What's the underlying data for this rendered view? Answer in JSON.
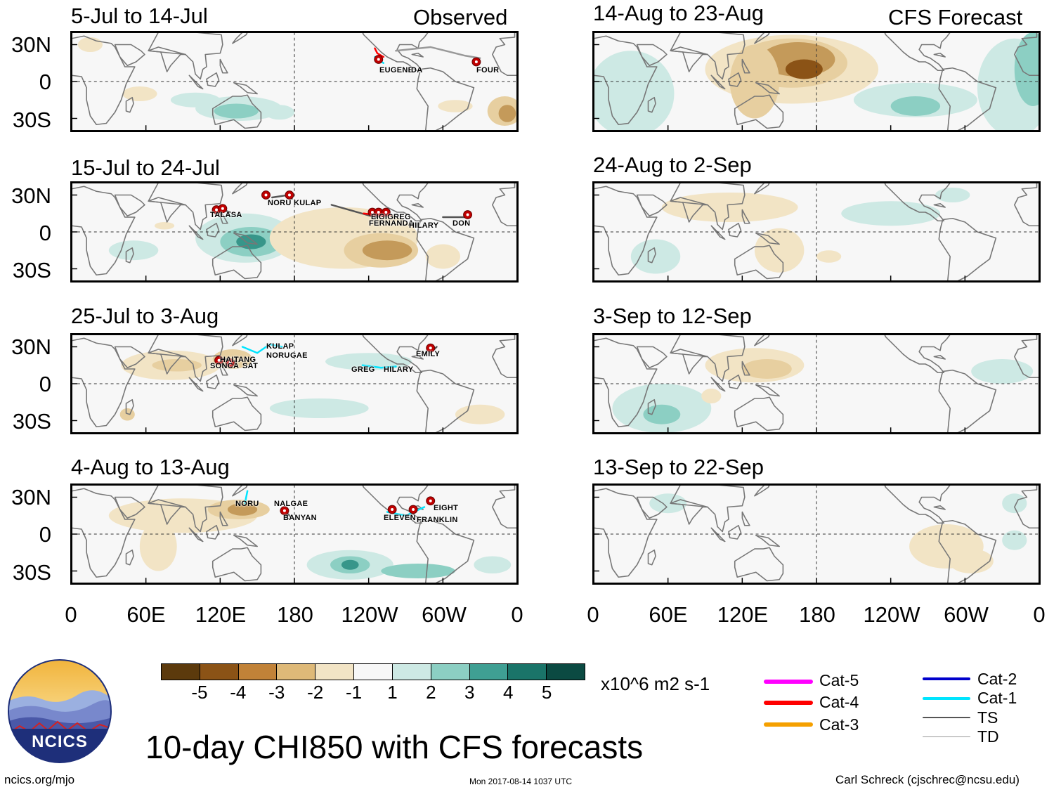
{
  "colors": {
    "panel_bg": "#f7f7f7",
    "brown_dark": "#8b5316",
    "brown_mid": "#c49a5a",
    "brown_light": "#e7cfa0",
    "tan": "#f2e4c5",
    "green_light": "#cde9e4",
    "green_mid": "#8ccfc3",
    "green_dark": "#37968a",
    "coast": "#777777",
    "storm_red": "#c00000"
  },
  "observed_label": "Observed",
  "forecast_label": "CFS Forecast",
  "left_panels": [
    {
      "title": "5-Jul to 14-Jul"
    },
    {
      "title": "15-Jul to 24-Jul"
    },
    {
      "title": "25-Jul to 3-Aug"
    },
    {
      "title": "4-Aug to 13-Aug"
    }
  ],
  "right_panels": [
    {
      "title": "14-Aug to 23-Aug"
    },
    {
      "title": "24-Aug to 2-Sep"
    },
    {
      "title": "3-Sep to 12-Sep"
    },
    {
      "title": "13-Sep to 22-Sep"
    }
  ],
  "lat_labels": [
    "30N",
    "0",
    "30S"
  ],
  "lon_labels": [
    "0",
    "60E",
    "120E",
    "180",
    "120W",
    "60W",
    "0"
  ],
  "storms": [
    [
      "EUGENE",
      "DA",
      "FOUR"
    ],
    [
      "TALASA",
      "NORU",
      "KULAP",
      "FERNANDA",
      "EIGIGREG",
      "HILARY",
      "DON"
    ],
    [
      "SONCA",
      "SAT",
      "HAITANG",
      "KULAP",
      "NORU",
      "GAE",
      "GREG",
      "HILARY",
      "EMILY"
    ],
    [
      "NORU",
      "NALGAE",
      "BANYAN",
      "ELEVEN",
      "EIGHT",
      "FRANKLIN"
    ]
  ],
  "colorbar": {
    "labels": [
      "-5",
      "-4",
      "-3",
      "-2",
      "-1",
      "1",
      "2",
      "3",
      "4",
      "5"
    ],
    "colors": [
      "#5c3a0c",
      "#8b5316",
      "#c18238",
      "#deb978",
      "#f2e4c5",
      "#f7f7f7",
      "#cde9e4",
      "#8ccfc3",
      "#3f9f93",
      "#1a7469",
      "#0b4a42"
    ],
    "units": "x10^6 m2 s-1"
  },
  "legend": [
    {
      "label": "Cat-5",
      "color": "#ff00ff"
    },
    {
      "label": "Cat-4",
      "color": "#ff0000"
    },
    {
      "label": "Cat-3",
      "color": "#f5a000"
    },
    {
      "label": "Cat-2",
      "color": "#0000cc"
    },
    {
      "label": "Cat-1",
      "color": "#00e5ff"
    },
    {
      "label": "TS",
      "color": "#555555"
    },
    {
      "label": "TD",
      "color": "#999999"
    }
  ],
  "logo_text": "NCICS",
  "main_title": "10-day CHI850 with CFS forecasts",
  "footer_left": "ncics.org/mjo",
  "footer_center": "Mon 2017-08-14 1037 UTC",
  "footer_right": "Carl Schreck (cjschrec@ncsu.edu)"
}
